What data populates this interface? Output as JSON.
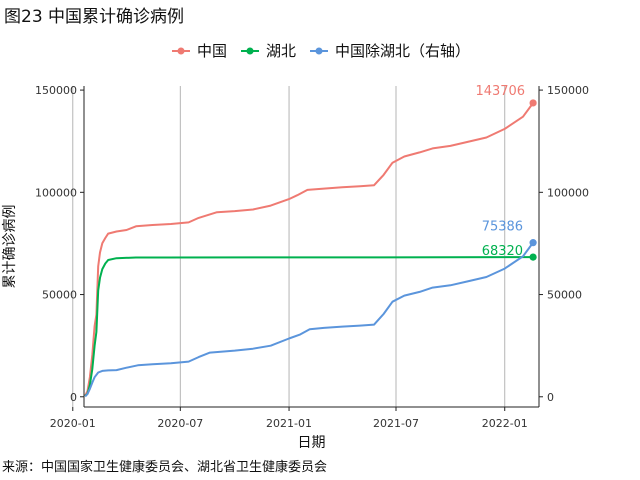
{
  "title": "图23 中国累计确诊病例",
  "source": "来源：中国国家卫生健康委员会、湖北省卫生健康委员会",
  "chart_data": {
    "type": "line",
    "xlabel": "日期",
    "ylabel": "累计确诊病例",
    "x_ticks": [
      "2020-01",
      "2020-07",
      "2021-01",
      "2021-07",
      "2022-01"
    ],
    "x_range": [
      "2020-01-20",
      "2022-02-28"
    ],
    "y_left": {
      "ticks": [
        0,
        50000,
        100000,
        150000
      ],
      "range": [
        -5000,
        152000
      ]
    },
    "y_right": {
      "ticks": [
        0,
        50000,
        100000,
        150000
      ],
      "range": [
        -5000,
        152000
      ]
    },
    "grid": "vertical only",
    "legend": "top",
    "series": [
      {
        "name": "中国",
        "axis": "left",
        "color": "#EF7A72",
        "end_label": "143706",
        "points": [
          [
            "2020-01-22",
            571
          ],
          [
            "2020-01-26",
            2761
          ],
          [
            "2020-01-30",
            9692
          ],
          [
            "2020-02-03",
            20438
          ],
          [
            "2020-02-07",
            34546
          ],
          [
            "2020-02-10",
            40171
          ],
          [
            "2020-02-13",
            63851
          ],
          [
            "2020-02-16",
            70548
          ],
          [
            "2020-02-20",
            75077
          ],
          [
            "2020-02-25",
            77658
          ],
          [
            "2020-03-01",
            79824
          ],
          [
            "2020-03-15",
            80860
          ],
          [
            "2020-04-01",
            81554
          ],
          [
            "2020-04-17",
            83403
          ],
          [
            "2020-05-15",
            84030
          ],
          [
            "2020-06-15",
            84500
          ],
          [
            "2020-07-15",
            85300
          ],
          [
            "2020-08-01",
            87500
          ],
          [
            "2020-09-01",
            90300
          ],
          [
            "2020-10-01",
            90800
          ],
          [
            "2020-11-01",
            91600
          ],
          [
            "2020-12-01",
            93500
          ],
          [
            "2021-01-01",
            96700
          ],
          [
            "2021-01-15",
            98600
          ],
          [
            "2021-02-01",
            101200
          ],
          [
            "2021-03-01",
            101800
          ],
          [
            "2021-04-01",
            102500
          ],
          [
            "2021-05-01",
            103000
          ],
          [
            "2021-05-25",
            103500
          ],
          [
            "2021-06-10",
            108500
          ],
          [
            "2021-06-25",
            114500
          ],
          [
            "2021-07-15",
            117500
          ],
          [
            "2021-08-10",
            119500
          ],
          [
            "2021-09-01",
            121500
          ],
          [
            "2021-10-01",
            122700
          ],
          [
            "2021-11-01",
            124800
          ],
          [
            "2021-12-01",
            126800
          ],
          [
            "2022-01-01",
            131000
          ],
          [
            "2022-02-01",
            137000
          ],
          [
            "2022-02-18",
            143706
          ]
        ]
      },
      {
        "name": "湖北",
        "axis": "left",
        "color": "#00B14F",
        "end_label": "68320",
        "points": [
          [
            "2020-01-22",
            444
          ],
          [
            "2020-01-26",
            1423
          ],
          [
            "2020-01-30",
            5806
          ],
          [
            "2020-02-03",
            13522
          ],
          [
            "2020-02-07",
            24953
          ],
          [
            "2020-02-10",
            31728
          ],
          [
            "2020-02-13",
            51986
          ],
          [
            "2020-02-16",
            58182
          ],
          [
            "2020-02-20",
            62442
          ],
          [
            "2020-02-25",
            65187
          ],
          [
            "2020-03-01",
            66907
          ],
          [
            "2020-03-15",
            67794
          ],
          [
            "2020-04-17",
            68128
          ],
          [
            "2020-06-01",
            68135
          ],
          [
            "2020-12-01",
            68149
          ],
          [
            "2021-06-01",
            68160
          ],
          [
            "2022-02-18",
            68320
          ]
        ]
      },
      {
        "name": "中国除湖北（右轴）",
        "axis": "right",
        "color": "#5B95DC",
        "end_label": "75386",
        "points": [
          [
            "2020-01-22",
            127
          ],
          [
            "2020-01-26",
            1338
          ],
          [
            "2020-01-30",
            3886
          ],
          [
            "2020-02-03",
            6916
          ],
          [
            "2020-02-07",
            9593
          ],
          [
            "2020-02-13",
            11865
          ],
          [
            "2020-02-20",
            12635
          ],
          [
            "2020-03-01",
            12917
          ],
          [
            "2020-03-15",
            13066
          ],
          [
            "2020-04-01",
            14200
          ],
          [
            "2020-04-20",
            15400
          ],
          [
            "2020-05-15",
            15900
          ],
          [
            "2020-06-15",
            16400
          ],
          [
            "2020-07-15",
            17200
          ],
          [
            "2020-08-01",
            19400
          ],
          [
            "2020-08-20",
            21600
          ],
          [
            "2020-10-01",
            22600
          ],
          [
            "2020-11-01",
            23500
          ],
          [
            "2020-12-01",
            25000
          ],
          [
            "2021-01-01",
            28500
          ],
          [
            "2021-01-20",
            30500
          ],
          [
            "2021-02-05",
            33000
          ],
          [
            "2021-03-01",
            33700
          ],
          [
            "2021-04-01",
            34300
          ],
          [
            "2021-05-01",
            34800
          ],
          [
            "2021-05-25",
            35300
          ],
          [
            "2021-06-10",
            40500
          ],
          [
            "2021-06-25",
            46500
          ],
          [
            "2021-07-15",
            49500
          ],
          [
            "2021-08-10",
            51300
          ],
          [
            "2021-09-01",
            53400
          ],
          [
            "2021-10-01",
            54500
          ],
          [
            "2021-11-01",
            56600
          ],
          [
            "2021-12-01",
            58600
          ],
          [
            "2022-01-01",
            62700
          ],
          [
            "2022-02-01",
            68700
          ],
          [
            "2022-02-18",
            75386
          ]
        ]
      }
    ]
  }
}
